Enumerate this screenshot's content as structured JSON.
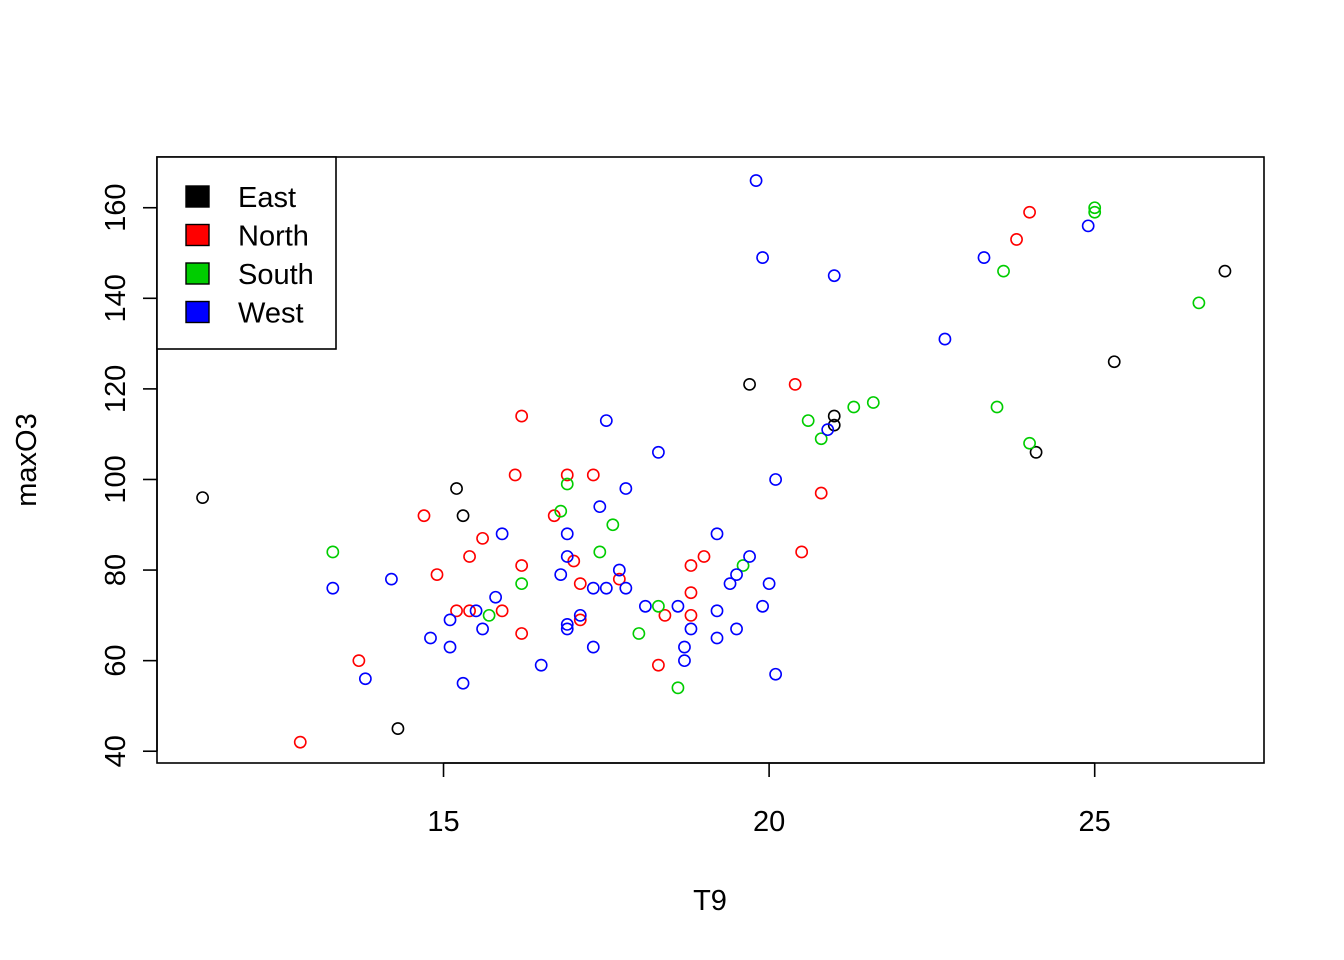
{
  "chart_data": {
    "type": "scatter",
    "title": "",
    "xlabel": "T9",
    "ylabel": "maxO3",
    "xlim": [
      10.6,
      27.6
    ],
    "ylim": [
      37.4,
      171.2
    ],
    "xticks": [
      15,
      20,
      25
    ],
    "yticks": [
      40,
      60,
      80,
      100,
      120,
      140,
      160
    ],
    "grid": false,
    "legend_position": "top-left",
    "series": [
      {
        "name": "East",
        "color": "#000000",
        "points": [
          [
            11.3,
            96
          ],
          [
            14.3,
            45
          ],
          [
            15.2,
            98
          ],
          [
            15.3,
            92
          ],
          [
            19.7,
            121
          ],
          [
            21.0,
            114
          ],
          [
            21.0,
            112
          ],
          [
            24.1,
            106
          ],
          [
            25.3,
            126
          ],
          [
            27.0,
            146
          ]
        ]
      },
      {
        "name": "North",
        "color": "#FF0000",
        "points": [
          [
            12.8,
            42
          ],
          [
            13.7,
            60
          ],
          [
            14.7,
            92
          ],
          [
            14.9,
            79
          ],
          [
            15.2,
            71
          ],
          [
            15.4,
            71
          ],
          [
            15.4,
            83
          ],
          [
            15.6,
            87
          ],
          [
            15.9,
            71
          ],
          [
            16.1,
            101
          ],
          [
            16.2,
            114
          ],
          [
            16.2,
            81
          ],
          [
            16.2,
            66
          ],
          [
            16.7,
            92
          ],
          [
            16.9,
            101
          ],
          [
            17.0,
            82
          ],
          [
            17.1,
            77
          ],
          [
            17.1,
            69
          ],
          [
            17.3,
            101
          ],
          [
            17.7,
            78
          ],
          [
            18.3,
            59
          ],
          [
            18.4,
            70
          ],
          [
            18.8,
            81
          ],
          [
            18.8,
            75
          ],
          [
            18.8,
            70
          ],
          [
            19.0,
            83
          ],
          [
            20.4,
            121
          ],
          [
            20.5,
            84
          ],
          [
            20.8,
            97
          ],
          [
            23.8,
            153
          ],
          [
            24.0,
            159
          ]
        ]
      },
      {
        "name": "South",
        "color": "#00CD00",
        "points": [
          [
            13.3,
            84
          ],
          [
            15.7,
            70
          ],
          [
            16.2,
            77
          ],
          [
            16.8,
            93
          ],
          [
            16.9,
            99
          ],
          [
            17.4,
            84
          ],
          [
            17.6,
            90
          ],
          [
            18.0,
            66
          ],
          [
            18.3,
            72
          ],
          [
            18.6,
            54
          ],
          [
            19.6,
            81
          ],
          [
            20.6,
            113
          ],
          [
            20.8,
            109
          ],
          [
            21.3,
            116
          ],
          [
            21.6,
            117
          ],
          [
            23.5,
            116
          ],
          [
            23.6,
            146
          ],
          [
            24.0,
            108
          ],
          [
            25.0,
            160
          ],
          [
            25.0,
            159
          ],
          [
            26.6,
            139
          ]
        ]
      },
      {
        "name": "West",
        "color": "#0000FF",
        "points": [
          [
            13.3,
            76
          ],
          [
            13.8,
            56
          ],
          [
            14.2,
            78
          ],
          [
            14.8,
            65
          ],
          [
            15.1,
            63
          ],
          [
            15.1,
            69
          ],
          [
            15.3,
            55
          ],
          [
            15.5,
            71
          ],
          [
            15.6,
            67
          ],
          [
            15.8,
            74
          ],
          [
            15.9,
            88
          ],
          [
            16.5,
            59
          ],
          [
            16.8,
            79
          ],
          [
            16.9,
            88
          ],
          [
            16.9,
            83
          ],
          [
            16.9,
            68
          ],
          [
            16.9,
            67
          ],
          [
            17.1,
            70
          ],
          [
            17.3,
            63
          ],
          [
            17.3,
            76
          ],
          [
            17.4,
            94
          ],
          [
            17.5,
            76
          ],
          [
            17.5,
            113
          ],
          [
            17.7,
            80
          ],
          [
            17.8,
            76
          ],
          [
            17.8,
            98
          ],
          [
            18.1,
            72
          ],
          [
            18.3,
            106
          ],
          [
            18.6,
            72
          ],
          [
            18.7,
            63
          ],
          [
            18.7,
            60
          ],
          [
            18.8,
            67
          ],
          [
            19.2,
            88
          ],
          [
            19.2,
            71
          ],
          [
            19.2,
            65
          ],
          [
            19.4,
            77
          ],
          [
            19.5,
            79
          ],
          [
            19.5,
            67
          ],
          [
            19.7,
            83
          ],
          [
            19.8,
            166
          ],
          [
            19.9,
            149
          ],
          [
            19.9,
            72
          ],
          [
            20.0,
            77
          ],
          [
            20.1,
            100
          ],
          [
            20.1,
            57
          ],
          [
            20.9,
            111
          ],
          [
            21.0,
            145
          ],
          [
            22.7,
            131
          ],
          [
            23.3,
            149
          ],
          [
            24.9,
            156
          ]
        ]
      }
    ]
  }
}
